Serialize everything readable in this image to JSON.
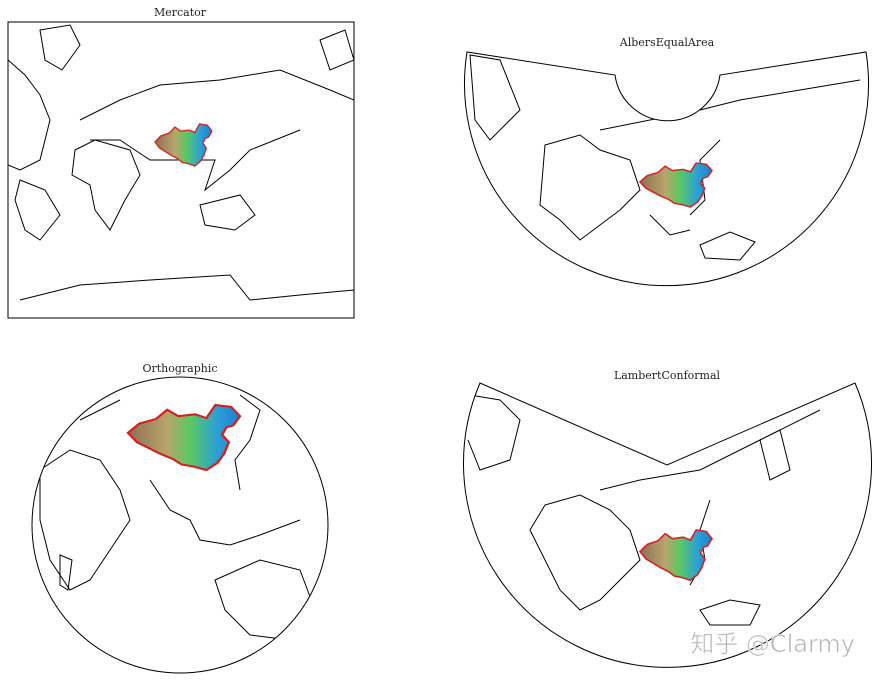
{
  "panels": [
    {
      "title": "Mercator"
    },
    {
      "title": "AlbersEqualArea"
    },
    {
      "title": "Orthographic"
    },
    {
      "title": "LambertConformal"
    }
  ],
  "watermark": "知乎 @Clarmy"
}
